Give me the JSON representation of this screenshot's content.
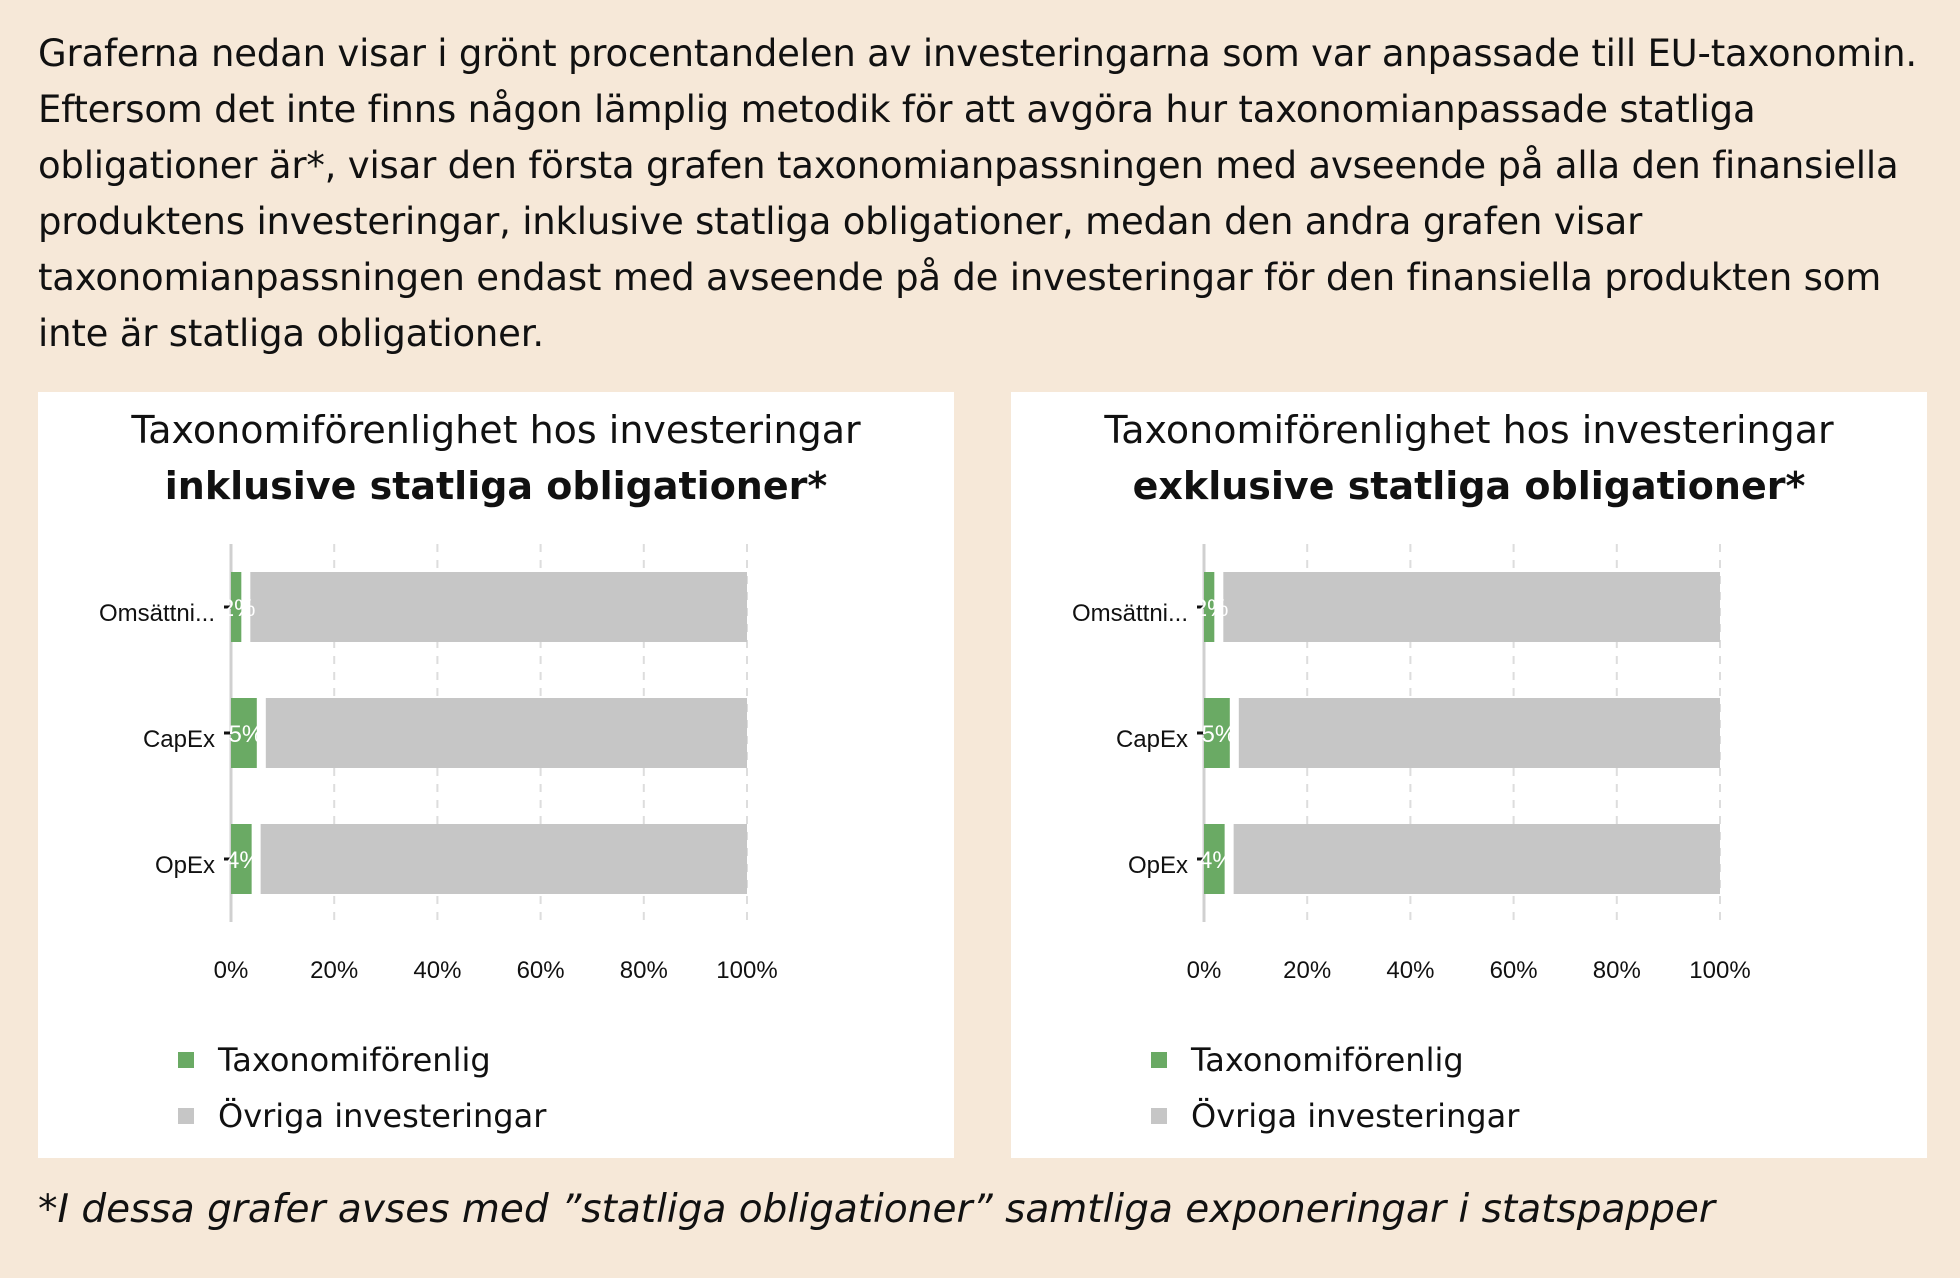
{
  "intro": "Graferna nedan visar i grönt procentandelen av investeringarna som var anpassade till EU-taxonomin. Eftersom det inte finns någon lämplig metodik för att avgöra hur taxonomianpassade statliga obligationer är*, visar den första grafen taxonomianpassningen med avseende på alla den finansiella produktens investeringar, inklusive statliga obligationer, medan den andra grafen visar taxonomianpassningen endast med avseende på de investeringar för den finansiella produkten som inte är statliga obligationer.",
  "colors": {
    "aligned": "#6aaa64",
    "other": "#c6c6c6",
    "grid": "#dddddd",
    "axis": "#d0d0d0"
  },
  "legend": {
    "aligned": "Taxonomiförenlig",
    "other": "Övriga investeringar"
  },
  "footnote": "*I dessa grafer avses med ”statliga obligationer” samtliga exponeringar i statspapper",
  "chart_data": [
    {
      "type": "bar",
      "orientation": "horizontal",
      "stacked": true,
      "title": "Taxonomiförenlighet hos investeringar",
      "title_bold": "inklusive statliga obligationer*",
      "categories": [
        "Omsättni...",
        "CapEx",
        "OpEx"
      ],
      "series": [
        {
          "name": "Taxonomiförenlig",
          "values": [
            2,
            5,
            4
          ],
          "labels": [
            "2%",
            "5%",
            "4%"
          ]
        },
        {
          "name": "Övriga investeringar",
          "values": [
            98,
            95,
            96
          ]
        }
      ],
      "xlim": [
        0,
        100
      ],
      "xticks": [
        "0%",
        "20%",
        "40%",
        "60%",
        "80%",
        "100%"
      ],
      "grid": true
    },
    {
      "type": "bar",
      "orientation": "horizontal",
      "stacked": true,
      "title": "Taxonomiförenlighet hos investeringar",
      "title_bold": "exklusive statliga obligationer*",
      "categories": [
        "Omsättni...",
        "CapEx",
        "OpEx"
      ],
      "series": [
        {
          "name": "Taxonomiförenlig",
          "values": [
            2,
            5,
            4
          ],
          "labels": [
            "2%",
            "5%",
            "4%"
          ]
        },
        {
          "name": "Övriga investeringar",
          "values": [
            98,
            95,
            96
          ]
        }
      ],
      "xlim": [
        0,
        100
      ],
      "xticks": [
        "0%",
        "20%",
        "40%",
        "60%",
        "80%",
        "100%"
      ],
      "grid": true
    }
  ]
}
